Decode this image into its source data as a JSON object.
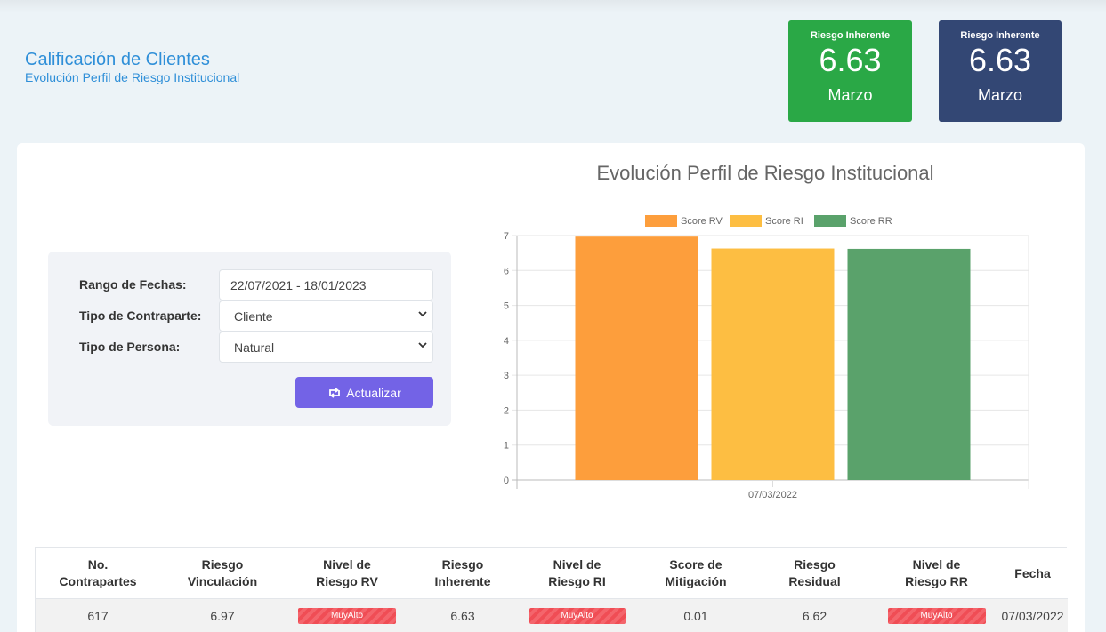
{
  "header": {
    "title": "Calificación de Clientes",
    "subtitle": "Evolución Perfil de Riesgo Institucional"
  },
  "kpis": [
    {
      "label": "Riesgo Inherente",
      "value": "6.63",
      "month": "Marzo",
      "color": "#2aa846"
    },
    {
      "label": "Riesgo Inherente",
      "value": "6.63",
      "month": "Marzo",
      "color": "#334774"
    }
  ],
  "filters": {
    "date_range_label": "Rango de Fechas:",
    "date_range_value": "22/07/2021 - 18/01/2023",
    "counterparty_label": "Tipo de Contraparte:",
    "counterparty_value": "Cliente",
    "person_label": "Tipo de Persona:",
    "person_value": "Natural",
    "update_button": "Actualizar",
    "update_icon": "refresh-icon",
    "button_color": "#7363e6"
  },
  "chart_data": {
    "type": "bar",
    "title": "Evolución Perfil de Riesgo Institucional",
    "categories": [
      "07/03/2022"
    ],
    "series": [
      {
        "name": "Score RV",
        "values": [
          6.97
        ],
        "color": "#fd9e3c"
      },
      {
        "name": "Score RI",
        "values": [
          6.63
        ],
        "color": "#fdbe42"
      },
      {
        "name": "Score RR",
        "values": [
          6.62
        ],
        "color": "#5aa26b"
      }
    ],
    "ylim": [
      0,
      7
    ],
    "yticks": [
      "0",
      "1",
      "2",
      "3",
      "4",
      "5",
      "6",
      "7"
    ],
    "grid": true,
    "legend": "top"
  },
  "table": {
    "headers": [
      [
        "No.",
        "Contrapartes"
      ],
      [
        "Riesgo",
        "Vinculación"
      ],
      [
        "Nivel de",
        "Riesgo RV"
      ],
      [
        "Riesgo",
        "Inherente"
      ],
      [
        "Nivel de",
        "Riesgo RI"
      ],
      [
        "Score de",
        "Mitigación"
      ],
      [
        "Riesgo",
        "Residual"
      ],
      [
        "Nivel de",
        "Riesgo RR"
      ],
      [
        "Fecha"
      ]
    ],
    "row": [
      "617",
      "6.97",
      "MuyAlto",
      "6.63",
      "MuyAlto",
      "0.01",
      "6.62",
      "MuyAlto",
      "07/03/2022"
    ],
    "badge_color": "#f04d55"
  }
}
